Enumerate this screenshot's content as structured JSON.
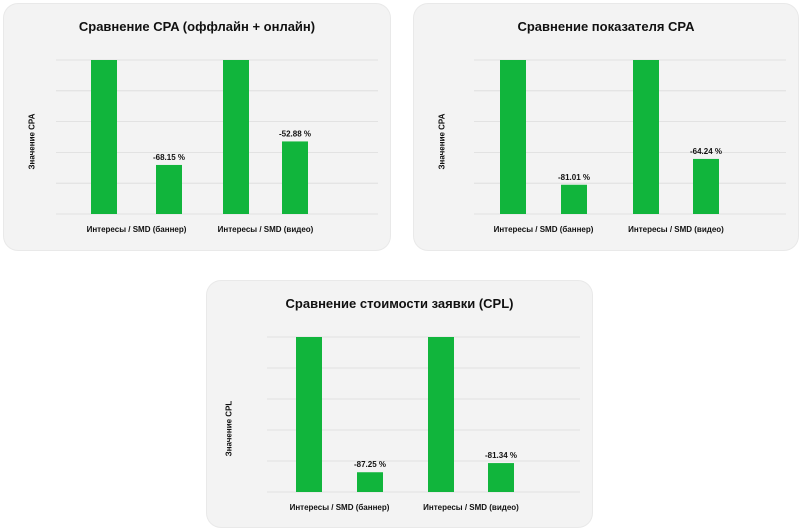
{
  "colors": {
    "bar": "#11b53c",
    "card": "#f3f3f3",
    "grid": "#dcdcdc"
  },
  "chart_data": [
    {
      "type": "bar",
      "title": "Сравнение CPA (оффлайн + онлайн)",
      "xlabel": "",
      "ylabel": "Значение CPA",
      "ylim": [
        0,
        100
      ],
      "grid": true,
      "groups": [
        {
          "category": "Интересы / SMD (баннер)",
          "values": [
            100,
            31.85
          ],
          "labels": [
            "",
            "-68.15 %"
          ]
        },
        {
          "category": "Интересы / SMD (видео)",
          "values": [
            100,
            47.12
          ],
          "labels": [
            "",
            "-52.88 %"
          ]
        }
      ]
    },
    {
      "type": "bar",
      "title": "Сравнение показателя CPA",
      "xlabel": "",
      "ylabel": "Значение CPA",
      "ylim": [
        0,
        100
      ],
      "grid": true,
      "groups": [
        {
          "category": "Интересы / SMD (баннер)",
          "values": [
            100,
            18.99
          ],
          "labels": [
            "",
            "-81.01 %"
          ]
        },
        {
          "category": "Интересы / SMD (видео)",
          "values": [
            100,
            35.76
          ],
          "labels": [
            "",
            "-64.24 %"
          ]
        }
      ]
    },
    {
      "type": "bar",
      "title": "Сравнение стоимости заявки (CPL)",
      "xlabel": "",
      "ylabel": "Значение CPL",
      "ylim": [
        0,
        100
      ],
      "grid": true,
      "groups": [
        {
          "category": "Интересы / SMD (баннер)",
          "values": [
            100,
            12.75
          ],
          "labels": [
            "",
            "-87.25 %"
          ]
        },
        {
          "category": "Интересы / SMD (видео)",
          "values": [
            100,
            18.66
          ],
          "labels": [
            "",
            "-81.34 %"
          ]
        }
      ]
    }
  ]
}
